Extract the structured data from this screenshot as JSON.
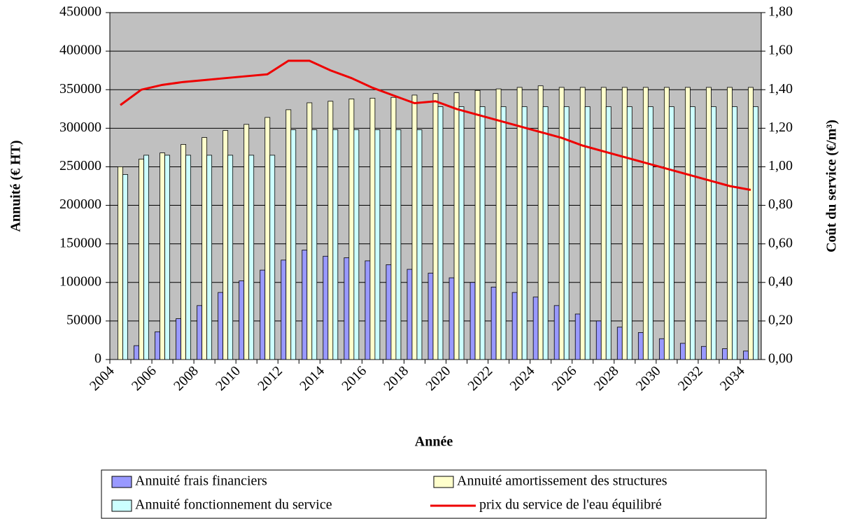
{
  "chart_data": {
    "type": "bar",
    "x_label": "Année",
    "y_label": "Annuité (€ HT)",
    "y2_label": "Coût du service (€/m³)",
    "categories": [
      "2004",
      null,
      "2006",
      null,
      "2008",
      null,
      "2010",
      null,
      "2012",
      null,
      "2014",
      null,
      "2016",
      null,
      "2018",
      null,
      "2020",
      null,
      "2022",
      null,
      "2024",
      null,
      "2026",
      null,
      "2028",
      null,
      "2030",
      null,
      "2032",
      null,
      "2034"
    ],
    "series": [
      {
        "name": "Annuité frais financiers",
        "color": "#9999ff",
        "values": [
          0,
          18000,
          36000,
          53000,
          70000,
          87000,
          102000,
          116000,
          129000,
          142000,
          134000,
          132000,
          128000,
          123000,
          117000,
          112000,
          106000,
          100000,
          94000,
          87000,
          81000,
          70000,
          59000,
          50000,
          42000,
          35000,
          27000,
          21000,
          17000,
          14000,
          11000
        ]
      },
      {
        "name": "Annuité amortissement des structures",
        "color": "#ffffcc",
        "values": [
          250000,
          260000,
          268000,
          279000,
          288000,
          297000,
          305000,
          314000,
          324000,
          333000,
          335000,
          338000,
          339000,
          340000,
          343000,
          345000,
          346000,
          349000,
          351000,
          353000,
          355000,
          353000,
          353000,
          353000,
          353000,
          353000,
          353000,
          353000,
          353000,
          353000,
          353000
        ]
      },
      {
        "name": "Annuité fonctionnement du service",
        "color": "#ccffff",
        "values": [
          240000,
          265000,
          265000,
          265000,
          265000,
          265000,
          265000,
          265000,
          298000,
          298000,
          298000,
          298000,
          298000,
          298000,
          298000,
          328000,
          328000,
          328000,
          328000,
          328000,
          328000,
          328000,
          328000,
          328000,
          328000,
          328000,
          328000,
          328000,
          328000,
          328000,
          328000
        ]
      },
      {
        "name": "prix du service de l'eau équilibré",
        "color": "#ee0000",
        "type": "line",
        "axis": "y2",
        "values": [
          1.32,
          1.4,
          1.425,
          1.44,
          1.45,
          1.46,
          1.47,
          1.48,
          1.55,
          1.55,
          1.5,
          1.46,
          1.41,
          1.37,
          1.33,
          1.34,
          1.3,
          1.27,
          1.24,
          1.21,
          1.18,
          1.15,
          1.11,
          1.08,
          1.05,
          1.02,
          0.99,
          0.96,
          0.93,
          0.9,
          0.88
        ]
      }
    ],
    "ylim": [
      0,
      450000
    ],
    "yticks": [
      0,
      50000,
      100000,
      150000,
      200000,
      250000,
      300000,
      350000,
      400000,
      450000
    ],
    "y2lim": [
      0,
      1.8
    ],
    "y2ticks": [
      {
        "value": 0,
        "label": "0,00"
      },
      {
        "value": 0.2,
        "label": "0,20"
      },
      {
        "value": 0.4,
        "label": "0,40"
      },
      {
        "value": 0.6,
        "label": "0,60"
      },
      {
        "value": 0.8,
        "label": "0,80"
      },
      {
        "value": 1.0,
        "label": "1,00"
      },
      {
        "value": 1.2,
        "label": "1,20"
      },
      {
        "value": 1.4,
        "label": "1,40"
      },
      {
        "value": 1.6,
        "label": "1,60"
      },
      {
        "value": 1.8,
        "label": "1,80"
      }
    ],
    "grid": true,
    "plot_background": "#c0c0c0",
    "legend_position": "bottom"
  }
}
